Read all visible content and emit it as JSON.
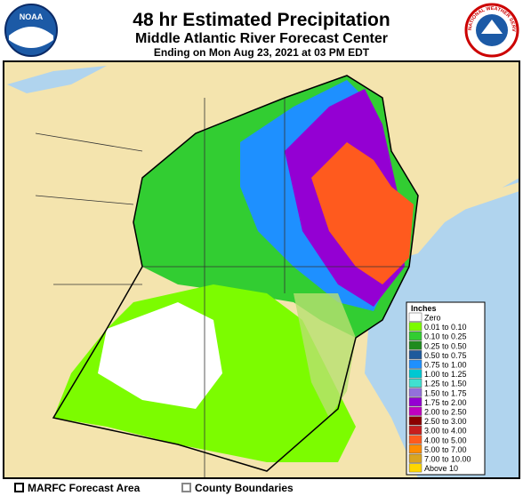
{
  "header": {
    "title": "48 hr Estimated Precipitation",
    "subtitle": "Middle Atlantic River Forecast Center",
    "ending": "Ending on Mon Aug 23, 2021 at 03 PM EDT"
  },
  "logos": {
    "left": "NOAA",
    "right": "NATIONAL WEATHER SERVICE"
  },
  "legend": {
    "title": "Inches",
    "entries": [
      {
        "label": "Zero",
        "color": "#ffffff"
      },
      {
        "label": "0.01 to 0.10",
        "color": "#7cfc00"
      },
      {
        "label": "0.10 to 0.25",
        "color": "#32cd32"
      },
      {
        "label": "0.25 to 0.50",
        "color": "#1f8b1f"
      },
      {
        "label": "0.50 to 0.75",
        "color": "#1e5a9c"
      },
      {
        "label": "0.75 to 1.00",
        "color": "#1e90ff"
      },
      {
        "label": "1.00 to 1.25",
        "color": "#00c8d2"
      },
      {
        "label": "1.25 to 1.50",
        "color": "#40e0d0"
      },
      {
        "label": "1.50 to 1.75",
        "color": "#9370db"
      },
      {
        "label": "1.75 to 2.00",
        "color": "#9400d3"
      },
      {
        "label": "2.00 to 2.50",
        "color": "#c000c0"
      },
      {
        "label": "2.50 to 3.00",
        "color": "#8b0000"
      },
      {
        "label": "3.00 to 4.00",
        "color": "#c81e1e"
      },
      {
        "label": "4.00 to 5.00",
        "color": "#ff5a1e"
      },
      {
        "label": "5.00 to 7.00",
        "color": "#ff8c00"
      },
      {
        "label": "7.00 to 10.00",
        "color": "#daa520"
      },
      {
        "label": "Above 10",
        "color": "#ffd700"
      }
    ]
  },
  "footer": {
    "forecast_area": "MARFC Forecast Area",
    "county_boundaries": "County Boundaries"
  }
}
